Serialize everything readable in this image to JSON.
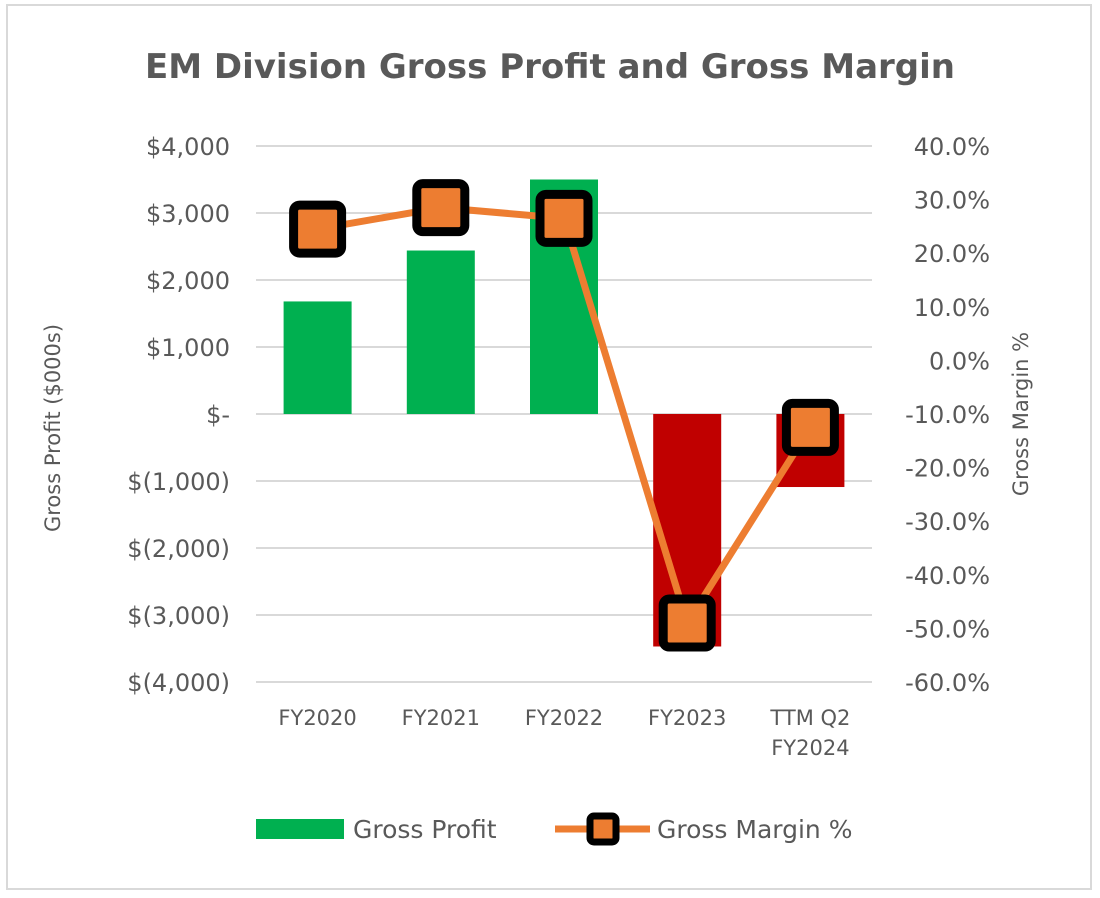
{
  "chart_data": {
    "type": "bar",
    "title": "EM Division Gross Profit and Gross Margin",
    "categories": [
      [
        "FY2020"
      ],
      [
        "FY2021"
      ],
      [
        "FY2022"
      ],
      [
        "FY2023"
      ],
      [
        "TTM Q2",
        "FY2024"
      ]
    ],
    "series": [
      {
        "name": "Gross Profit",
        "type": "bar",
        "axis": "left",
        "values": [
          1680,
          2440,
          3500,
          -3470,
          -1090
        ],
        "colors": [
          "#00b050",
          "#00b050",
          "#00b050",
          "#c00000",
          "#c00000"
        ]
      },
      {
        "name": "Gross Margin %",
        "type": "line",
        "axis": "right",
        "marker": "square",
        "values": [
          24.5,
          28.5,
          26.5,
          -49.0,
          -12.5
        ],
        "line_color": "#ed7d31",
        "marker_fill": "#ed7d31",
        "marker_edge": "#000000"
      }
    ],
    "y_left": {
      "label": "Gross Profit ($000s)",
      "lim": [
        -4000,
        4000
      ],
      "ticks": [
        4000,
        3000,
        2000,
        1000,
        0,
        -1000,
        -2000,
        -3000,
        -4000
      ],
      "tick_labels": [
        "$4,000",
        "$3,000",
        "$2,000",
        "$1,000",
        "$-",
        "$(1,000)",
        "$(2,000)",
        "$(3,000)",
        "$(4,000)"
      ]
    },
    "y_right": {
      "label": "Gross Margin %",
      "lim": [
        -60,
        40
      ],
      "ticks": [
        40,
        30,
        20,
        10,
        0,
        -10,
        -20,
        -30,
        -40,
        -50,
        -60
      ],
      "tick_labels": [
        "40.0%",
        "30.0%",
        "20.0%",
        "10.0%",
        "0.0%",
        "-10.0%",
        "-20.0%",
        "-30.0%",
        "-40.0%",
        "-50.0%",
        "-60.0%"
      ]
    },
    "grid": true,
    "legend": {
      "position": "bottom",
      "entries": [
        "Gross Profit",
        "Gross Margin %"
      ]
    }
  }
}
